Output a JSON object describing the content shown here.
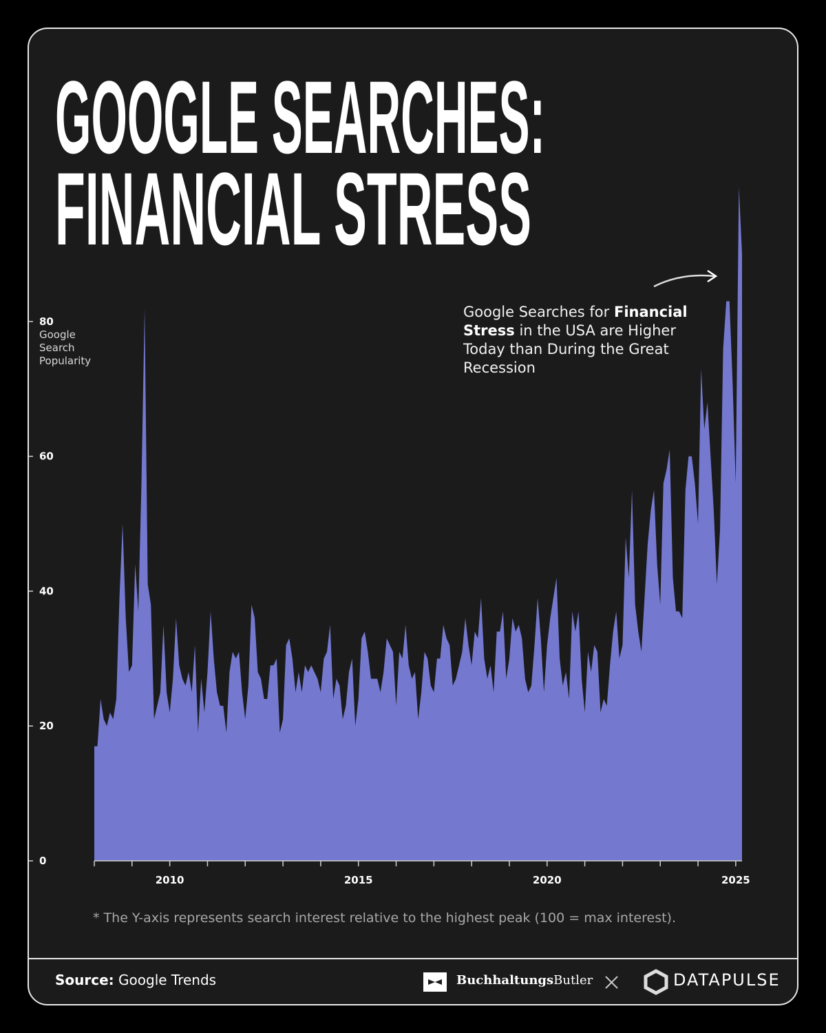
{
  "chart_data": {
    "type": "area",
    "title": [
      "GOOGLE SEARCHES:",
      "FINANCIAL STRESS"
    ],
    "y_label": "Google Search Popularity",
    "annotation": [
      "Google Searches for ",
      "Financial Stress",
      " in the USA are Higher Today than During the Great Recession"
    ],
    "footnote": "* The Y-axis represents search interest relative to the highest peak (100 = max interest).",
    "source": [
      "Source:",
      " Google Trends"
    ],
    "logos": [
      [
        "Buchhaltungs",
        "Butler"
      ],
      "DATAPULSE"
    ],
    "color": "#7479cf",
    "categories": [
      null,
      null,
      null,
      null,
      null,
      null,
      null,
      null,
      null,
      null,
      null,
      null,
      null,
      null,
      null,
      null,
      null,
      null,
      null,
      null,
      null,
      null,
      null,
      null,
      "2010",
      null,
      null,
      null,
      null,
      null,
      null,
      null,
      null,
      null,
      null,
      null,
      null,
      null,
      null,
      null,
      null,
      null,
      null,
      null,
      null,
      null,
      null,
      null,
      null,
      null,
      null,
      null,
      null,
      null,
      null,
      null,
      null,
      null,
      null,
      null,
      null,
      null,
      null,
      null,
      null,
      null,
      null,
      null,
      null,
      null,
      null,
      null,
      null,
      null,
      null,
      null,
      null,
      null,
      null,
      null,
      null,
      null,
      null,
      null,
      "2015",
      null,
      null,
      null,
      null,
      null,
      null,
      null,
      null,
      null,
      null,
      null,
      null,
      null,
      null,
      null,
      null,
      null,
      null,
      null,
      null,
      null,
      null,
      null,
      null,
      null,
      null,
      null,
      null,
      null,
      null,
      null,
      null,
      null,
      null,
      null,
      null,
      null,
      null,
      null,
      null,
      null,
      null,
      null,
      null,
      null,
      null,
      null,
      null,
      null,
      null,
      null,
      null,
      null,
      null,
      null,
      null,
      null,
      null,
      null,
      "2020",
      null,
      null,
      null,
      null,
      null,
      null,
      null,
      null,
      null,
      null,
      null,
      null,
      null,
      null,
      null,
      null,
      null,
      null,
      null,
      null,
      null,
      null,
      null,
      null,
      null,
      null,
      null,
      null,
      null,
      null,
      null,
      null,
      null,
      null,
      null,
      null,
      null,
      null,
      null,
      null,
      null,
      null,
      null,
      null,
      null,
      null,
      null,
      null,
      null,
      null,
      null,
      null,
      null,
      null,
      null,
      null,
      null,
      null,
      null,
      "2025",
      null,
      null
    ],
    "values": [
      17,
      17,
      24,
      21,
      20,
      22,
      21,
      24,
      39,
      50,
      36,
      28,
      29,
      44,
      37,
      56,
      82,
      41,
      38,
      21,
      23,
      25,
      35,
      25,
      22,
      27,
      36,
      29,
      27,
      26,
      28,
      25,
      32,
      19,
      27,
      22,
      28,
      37,
      30,
      25,
      23,
      23,
      19,
      28,
      31,
      30,
      31,
      25,
      21,
      26,
      38,
      36,
      28,
      27,
      24,
      24,
      29,
      29,
      30,
      19,
      21,
      32,
      33,
      30,
      25,
      28,
      25,
      29,
      28,
      29,
      28,
      27,
      25,
      30,
      31,
      35,
      24,
      27,
      26,
      21,
      23,
      28,
      30,
      20,
      24,
      33,
      34,
      31,
      27,
      27,
      27,
      25,
      28,
      33,
      32,
      31,
      23,
      31,
      30,
      35,
      29,
      27,
      28,
      21,
      25,
      31,
      30,
      26,
      25,
      30,
      30,
      35,
      33,
      32,
      26,
      27,
      29,
      31,
      36,
      32,
      29,
      34,
      33,
      39,
      30,
      27,
      29,
      25,
      34,
      34,
      37,
      27,
      30,
      36,
      34,
      35,
      33,
      27,
      25,
      26,
      32,
      39,
      33,
      25,
      32,
      36,
      39,
      42,
      30,
      26,
      28,
      24,
      37,
      34,
      37,
      27,
      22,
      31,
      28,
      32,
      31,
      22,
      24,
      23,
      29,
      34,
      37,
      30,
      32,
      48,
      42,
      55,
      38,
      34,
      31,
      39,
      47,
      52,
      55,
      44,
      38,
      56,
      58,
      61,
      42,
      37,
      37,
      36,
      55,
      60,
      60,
      56,
      50,
      73,
      64,
      68,
      60,
      52,
      41,
      49,
      76,
      83,
      83,
      71,
      56,
      100,
      90
    ],
    "ylim": [
      0,
      100
    ],
    "yticks": [
      0,
      20,
      40,
      60,
      80
    ]
  }
}
